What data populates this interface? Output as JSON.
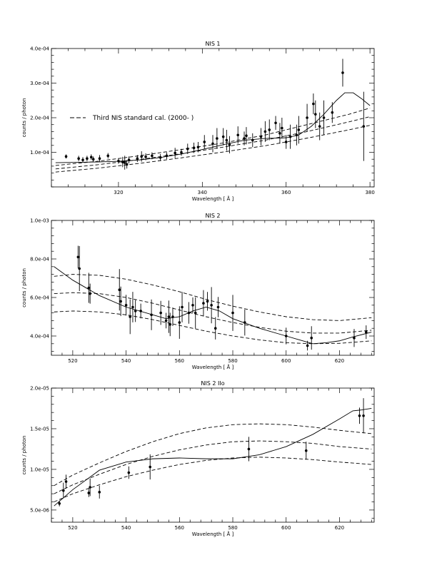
{
  "chart_data": [
    {
      "type": "scatter",
      "title": "NIS 1",
      "xlabel": "Wavelength [ Å ]",
      "ylabel": "counts / photon",
      "xlim": [
        304,
        381
      ],
      "ylim": [
        0.0,
        0.0004
      ],
      "xticks": [
        320,
        340,
        360,
        380
      ],
      "xtick_labels": [
        "320",
        "340",
        "360",
        "380"
      ],
      "yticks": [
        0.0001,
        0.0002,
        0.0003,
        0.0004
      ],
      "ytick_labels": [
        "1.0e-04",
        "2.0e-04",
        "3.0e-04",
        "4.0e-04"
      ],
      "legend": {
        "entries": [
          "Third NIS standard cal. (2000- )"
        ],
        "placement": "middle-left"
      },
      "grid": false,
      "series": [
        {
          "kind": "points-with-error-bars",
          "x": [
            307.5,
            310.5,
            311.5,
            312.5,
            313.5,
            314.0,
            315.5,
            317.5,
            320.0,
            321.0,
            321.5,
            322.0,
            322.5,
            324.5,
            325.5,
            326.5,
            328.0,
            330.0,
            331.5,
            333.5,
            335.0,
            336.5,
            338.0,
            339.0,
            340.5,
            342.5,
            343.5,
            345.0,
            345.8,
            346.5,
            348.5,
            350.0,
            350.5,
            352.0,
            354.0,
            355.0,
            356.0,
            357.5,
            358.5,
            359.0,
            360.0,
            361.0,
            362.5,
            363.0,
            365.0,
            366.5,
            367.0,
            368.0,
            369.0,
            371.0,
            373.5,
            378.5
          ],
          "y": [
            8.8e-05,
            8.2e-05,
            7.8e-05,
            8.2e-05,
            8.6e-05,
            8e-05,
            8.2e-05,
            9e-05,
            7.5e-05,
            7.2e-05,
            7e-05,
            6.5e-05,
            7.8e-05,
            8.2e-05,
            8.8e-05,
            8.7e-05,
            9e-05,
            8.5e-05,
            9e-05,
            9.8e-05,
            0.0001,
            0.00011,
            0.000113,
            0.000115,
            0.00013,
            0.000125,
            0.00014,
            0.000145,
            0.000135,
            0.000122,
            0.00015,
            0.00014,
            0.000148,
            0.000135,
            0.000145,
            0.00016,
            0.000165,
            0.000185,
            0.000155,
            0.00017,
            0.00013,
            0.000145,
            0.00015,
            0.000165,
            0.0002,
            0.00024,
            0.00021,
            0.000175,
            0.0002,
            0.000215,
            0.00033,
            0.000175
          ],
          "yerr": [
            6e-06,
            8e-06,
            8e-06,
            8e-06,
            8e-06,
            8e-06,
            1e-05,
            8e-06,
            8e-06,
            1.5e-05,
            2e-05,
            1.2e-05,
            1e-05,
            1e-05,
            1.5e-05,
            1e-05,
            1e-05,
            1e-05,
            1e-05,
            1.5e-05,
            1e-05,
            1.5e-05,
            1.5e-05,
            1.5e-05,
            2e-05,
            2.5e-05,
            3e-05,
            2.5e-05,
            3e-05,
            2.5e-05,
            2.5e-05,
            2e-05,
            2.5e-05,
            2e-05,
            2.5e-05,
            3e-05,
            3e-05,
            2e-05,
            3e-05,
            3e-05,
            2e-05,
            3.5e-05,
            3e-05,
            4e-05,
            4e-05,
            3e-05,
            4e-05,
            4e-05,
            5e-05,
            3e-05,
            4e-05,
            0.0001
          ]
        },
        {
          "kind": "solid-fit",
          "x": [
            305,
            310,
            315,
            320,
            325,
            330,
            335,
            340,
            345,
            350,
            355,
            360,
            363,
            366,
            369,
            372,
            374,
            376,
            378,
            380
          ],
          "y": [
            7e-05,
            7.1e-05,
            7.2e-05,
            7.4e-05,
            7.8e-05,
            8.5e-05,
            9.5e-05,
            0.000108,
            0.000122,
            0.000135,
            0.00014,
            0.000142,
            0.00015,
            0.000175,
            0.00021,
            0.00025,
            0.000272,
            0.000272,
            0.000255,
            0.000235
          ]
        },
        {
          "kind": "dashed-calibration-upper",
          "x": [
            305,
            315,
            325,
            335,
            345,
            355,
            365,
            375,
            380
          ],
          "y": [
            6.2e-05,
            7.4e-05,
            9e-05,
            0.000108,
            0.000127,
            0.00015,
            0.00018,
            0.00021,
            0.000228
          ]
        },
        {
          "kind": "dashed-calibration-middle",
          "x": [
            305,
            315,
            325,
            335,
            345,
            355,
            365,
            375,
            380
          ],
          "y": [
            5.2e-05,
            6.4e-05,
            7.9e-05,
            9.6e-05,
            0.000115,
            0.000135,
            0.00016,
            0.000188,
            0.000203
          ]
        },
        {
          "kind": "dashed-calibration-lower",
          "x": [
            305,
            315,
            325,
            335,
            345,
            355,
            365,
            375,
            380
          ],
          "y": [
            4.3e-05,
            5.4e-05,
            6.8e-05,
            8.4e-05,
            0.000101,
            0.000119,
            0.000141,
            0.000165,
            0.000178
          ]
        }
      ]
    },
    {
      "type": "scatter",
      "title": "NIS 2",
      "xlabel": "Wavelength [ Å ]",
      "ylabel": "counts / photon",
      "xlim": [
        512,
        633
      ],
      "ylim": [
        0.0003,
        0.001
      ],
      "xticks": [
        520,
        540,
        560,
        580,
        600,
        620
      ],
      "xtick_labels": [
        "520",
        "540",
        "560",
        "580",
        "600",
        "620"
      ],
      "yticks": [
        0.0004,
        0.0006,
        0.0008,
        0.001
      ],
      "ytick_labels": [
        "4.0e-04",
        "6.0e-04",
        "8.0e-04",
        "1.0e-03"
      ],
      "grid": false,
      "series": [
        {
          "kind": "points-with-error-bars",
          "x": [
            522.0,
            522.5,
            526.0,
            526.5,
            537.5,
            538.0,
            540.0,
            541.5,
            542.5,
            543.5,
            545.5,
            549.5,
            553.0,
            555.0,
            556.0,
            556.5,
            557.5,
            560.0,
            561.0,
            563.5,
            565.0,
            566.0,
            569.0,
            570.5,
            572.0,
            573.5,
            574.5,
            580.0,
            584.5,
            600.0,
            608.0,
            609.5,
            625.5,
            630.0
          ],
          "y": [
            0.00081,
            0.00075,
            0.00065,
            0.00062,
            0.00064,
            0.00058,
            0.00056,
            0.0005,
            0.00055,
            0.00053,
            0.00053,
            0.00051,
            0.00052,
            0.00048,
            0.0005,
            0.00046,
            0.0005,
            0.00047,
            0.00055,
            0.00052,
            0.00056,
            0.00052,
            0.00057,
            0.00058,
            0.00056,
            0.00044,
            0.00055,
            0.00052,
            0.00047,
            0.0004,
            0.00035,
            0.00039,
            0.00039,
            0.00042
          ]
        },
        {
          "kind": "solid-fit",
          "x": [
            513,
            520,
            530,
            540,
            550,
            555,
            560,
            565,
            570,
            575,
            580,
            590,
            600,
            605,
            610,
            615,
            620,
            625,
            632
          ],
          "y": [
            0.00076,
            0.00069,
            0.00061,
            0.00055,
            0.00051,
            0.00049,
            0.0005,
            0.00053,
            0.00055,
            0.00053,
            0.00049,
            0.00044,
            0.0004,
            0.00038,
            0.00036,
            0.000365,
            0.000375,
            0.000395,
            0.00042
          ]
        },
        {
          "kind": "dashed-calibration-upper",
          "x": [
            513,
            520,
            530,
            540,
            550,
            560,
            570,
            580,
            590,
            600,
            610,
            620,
            632
          ],
          "y": [
            0.00071,
            0.00072,
            0.000715,
            0.000695,
            0.000665,
            0.00063,
            0.00059,
            0.000555,
            0.000525,
            0.0005,
            0.000485,
            0.00048,
            0.000495
          ]
        },
        {
          "kind": "dashed-calibration-middle",
          "x": [
            513,
            520,
            530,
            540,
            550,
            560,
            570,
            580,
            590,
            600,
            610,
            620,
            632
          ],
          "y": [
            0.00062,
            0.000625,
            0.00062,
            0.0006,
            0.00057,
            0.000535,
            0.0005,
            0.00047,
            0.000445,
            0.000425,
            0.000415,
            0.000415,
            0.00043
          ]
        },
        {
          "kind": "dashed-calibration-lower",
          "x": [
            513,
            520,
            530,
            540,
            550,
            560,
            570,
            580,
            590,
            600,
            610,
            620,
            632
          ],
          "y": [
            0.000525,
            0.00053,
            0.000525,
            0.00051,
            0.000485,
            0.000455,
            0.000425,
            0.0004,
            0.00038,
            0.000365,
            0.00036,
            0.000362,
            0.000375
          ]
        }
      ]
    },
    {
      "type": "scatter",
      "title": "NIS 2 IIo",
      "xlabel": "Wavelength [ Å ]",
      "ylabel": "counts / photon",
      "xlim": [
        512,
        633
      ],
      "ylim": [
        3.5e-06,
        2e-05
      ],
      "xticks": [
        520,
        540,
        560,
        580,
        600,
        620
      ],
      "xtick_labels": [
        "520",
        "540",
        "560",
        "580",
        "600",
        "620"
      ],
      "yticks": [
        5e-06,
        1e-05,
        1.5e-05,
        2e-05
      ],
      "ytick_labels": [
        "5.0e-06",
        "1.0e-05",
        "1.5e-05",
        "2.0e-05"
      ],
      "grid": false,
      "series": [
        {
          "kind": "points-with-error-bars",
          "x": [
            515.0,
            516.5,
            517.5,
            526.0,
            526.5,
            530.0,
            541.0,
            549.0,
            586.0,
            607.5,
            627.5,
            629.0
          ],
          "y": [
            5.8e-06,
            7.4e-06,
            8.5e-06,
            7.1e-06,
            7.8e-06,
            7.2e-06,
            9.6e-06,
            1.03e-05,
            1.25e-05,
            1.23e-05,
            1.66e-05,
            1.66e-05
          ]
        },
        {
          "kind": "solid-fit",
          "x": [
            513,
            520,
            530,
            540,
            550,
            560,
            570,
            580,
            590,
            600,
            610,
            620,
            625,
            628,
            632
          ],
          "y": [
            5.5e-06,
            7.5e-06,
            9.9e-06,
            1.09e-05,
            1.13e-05,
            1.14e-05,
            1.13e-05,
            1.13e-05,
            1.18e-05,
            1.28e-05,
            1.43e-05,
            1.62e-05,
            1.72e-05,
            1.73e-05,
            1.75e-05
          ]
        },
        {
          "kind": "dashed-calibration-upper",
          "x": [
            513,
            520,
            530,
            540,
            550,
            560,
            570,
            580,
            590,
            600,
            610,
            620,
            632
          ],
          "y": [
            8e-06,
            9.3e-06,
            1.08e-05,
            1.22e-05,
            1.34e-05,
            1.44e-05,
            1.51e-05,
            1.55e-05,
            1.56e-05,
            1.55e-05,
            1.52e-05,
            1.48e-05,
            1.44e-05
          ]
        },
        {
          "kind": "dashed-calibration-middle",
          "x": [
            513,
            520,
            530,
            540,
            550,
            560,
            570,
            580,
            590,
            600,
            610,
            620,
            632
          ],
          "y": [
            7e-06,
            8.1e-06,
            9.4e-06,
            1.06e-05,
            1.16e-05,
            1.24e-05,
            1.3e-05,
            1.34e-05,
            1.35e-05,
            1.34e-05,
            1.32e-05,
            1.28e-05,
            1.25e-05
          ]
        },
        {
          "kind": "dashed-calibration-lower",
          "x": [
            513,
            520,
            530,
            540,
            550,
            560,
            570,
            580,
            590,
            600,
            610,
            620,
            632
          ],
          "y": [
            6e-06,
            7e-06,
            8.1e-06,
            9.1e-06,
            9.9e-06,
            1.06e-05,
            1.11e-05,
            1.14e-05,
            1.15e-05,
            1.14e-05,
            1.12e-05,
            1.09e-05,
            1.06e-05
          ]
        }
      ]
    }
  ]
}
